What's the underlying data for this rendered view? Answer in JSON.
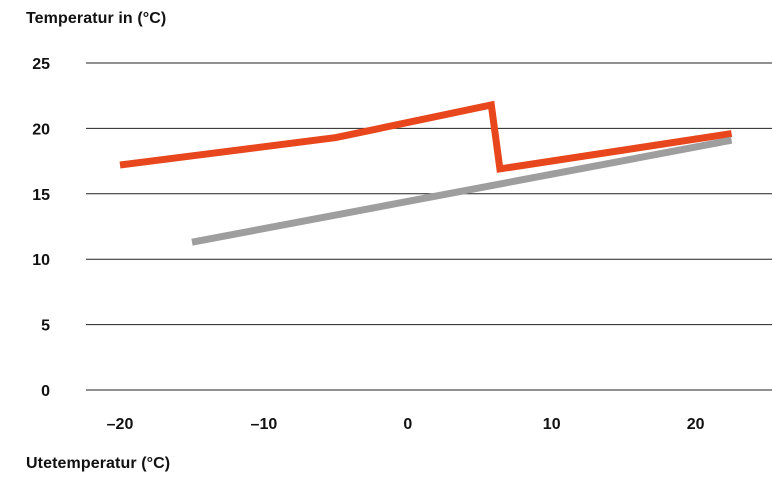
{
  "chart_data": {
    "type": "line",
    "ylabel": "Temperatur in (°C)",
    "xlabel": "Utetemperatur (°C)",
    "ylim": [
      0,
      25
    ],
    "yticks": [
      0,
      5,
      10,
      15,
      20,
      25
    ],
    "xticks": [
      {
        "value": -20,
        "label": "–20"
      },
      {
        "value": -10,
        "label": "–10"
      },
      {
        "value": 0,
        "label": "0"
      },
      {
        "value": 10,
        "label": "10"
      },
      {
        "value": 20,
        "label": "20"
      }
    ],
    "grid": true,
    "series": [
      {
        "color": "#e8461c",
        "points": [
          {
            "x": -20,
            "y": 17.2
          },
          {
            "x": -5,
            "y": 19.3
          },
          {
            "x": 5.8,
            "y": 21.8
          },
          {
            "x": 6.4,
            "y": 16.9
          },
          {
            "x": 22.5,
            "y": 19.6
          }
        ]
      },
      {
        "color": "#9e9e9e",
        "points": [
          {
            "x": -15,
            "y": 11.3
          },
          {
            "x": 22.5,
            "y": 19.1
          }
        ]
      }
    ]
  }
}
